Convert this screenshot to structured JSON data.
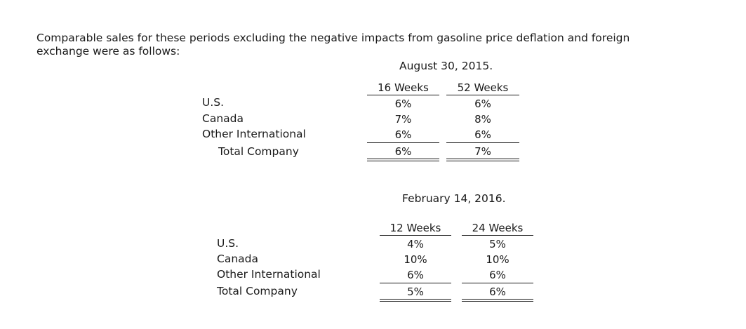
{
  "intro": "Comparable sales for these periods excluding the negative impacts from gasoline price deflation and foreign exchange were as follows:",
  "table1": {
    "period": "August 30, 2015.",
    "col1": "16 Weeks",
    "col2": "52 Weeks",
    "rows": [
      {
        "label": "U.S.",
        "v1": "6%",
        "v2": "6%"
      },
      {
        "label": "Canada",
        "v1": "7%",
        "v2": "8%"
      },
      {
        "label": "Other International",
        "v1": "6%",
        "v2": "6%"
      },
      {
        "label": "Total Company",
        "v1": "6%",
        "v2": "7%"
      }
    ]
  },
  "table2": {
    "period": "February 14, 2016.",
    "col1": "12 Weeks",
    "col2": "24 Weeks",
    "rows": [
      {
        "label": "U.S.",
        "v1": "4%",
        "v2": "5%"
      },
      {
        "label": "Canada",
        "v1": "10%",
        "v2": "10%"
      },
      {
        "label": "Other International",
        "v1": "6%",
        "v2": "6%"
      },
      {
        "label": "Total Company",
        "v1": "5%",
        "v2": "6%"
      }
    ]
  }
}
